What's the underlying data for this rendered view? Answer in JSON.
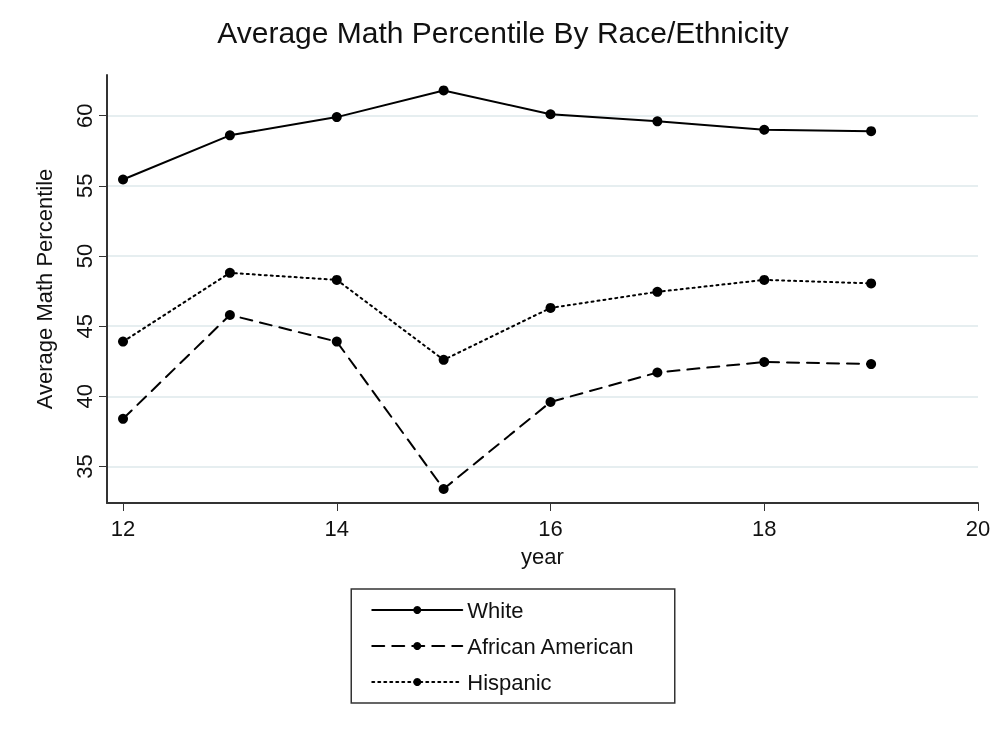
{
  "chart_data": {
    "type": "line",
    "title": "Average Math Percentile By Race/Ethnicity",
    "xlabel": "year",
    "ylabel": "Average Math Percentile",
    "x": [
      12,
      13,
      14,
      15,
      16,
      17,
      18,
      19
    ],
    "series": [
      {
        "name": "White",
        "color": "#000000",
        "line_style": "solid",
        "values": [
          55.45,
          58.6,
          59.9,
          61.8,
          60.1,
          59.6,
          59.0,
          58.9
        ]
      },
      {
        "name": "African American",
        "color": "#000000",
        "line_style": "dashed",
        "values": [
          38.4,
          45.8,
          43.9,
          33.4,
          39.6,
          41.7,
          42.45,
          42.3
        ]
      },
      {
        "name": "Hispanic",
        "color": "#000000",
        "line_style": "dotted",
        "values": [
          43.9,
          48.8,
          48.3,
          42.6,
          46.3,
          47.45,
          48.3,
          48.05
        ]
      }
    ],
    "xlim": [
      11.85,
      20
    ],
    "xticks": [
      12,
      14,
      16,
      18,
      20
    ],
    "ylim": [
      32.4,
      62.9
    ],
    "yticks": [
      35,
      40,
      45,
      50,
      55,
      60
    ],
    "grid": "y",
    "legend": "bottom",
    "marker": "circle"
  }
}
